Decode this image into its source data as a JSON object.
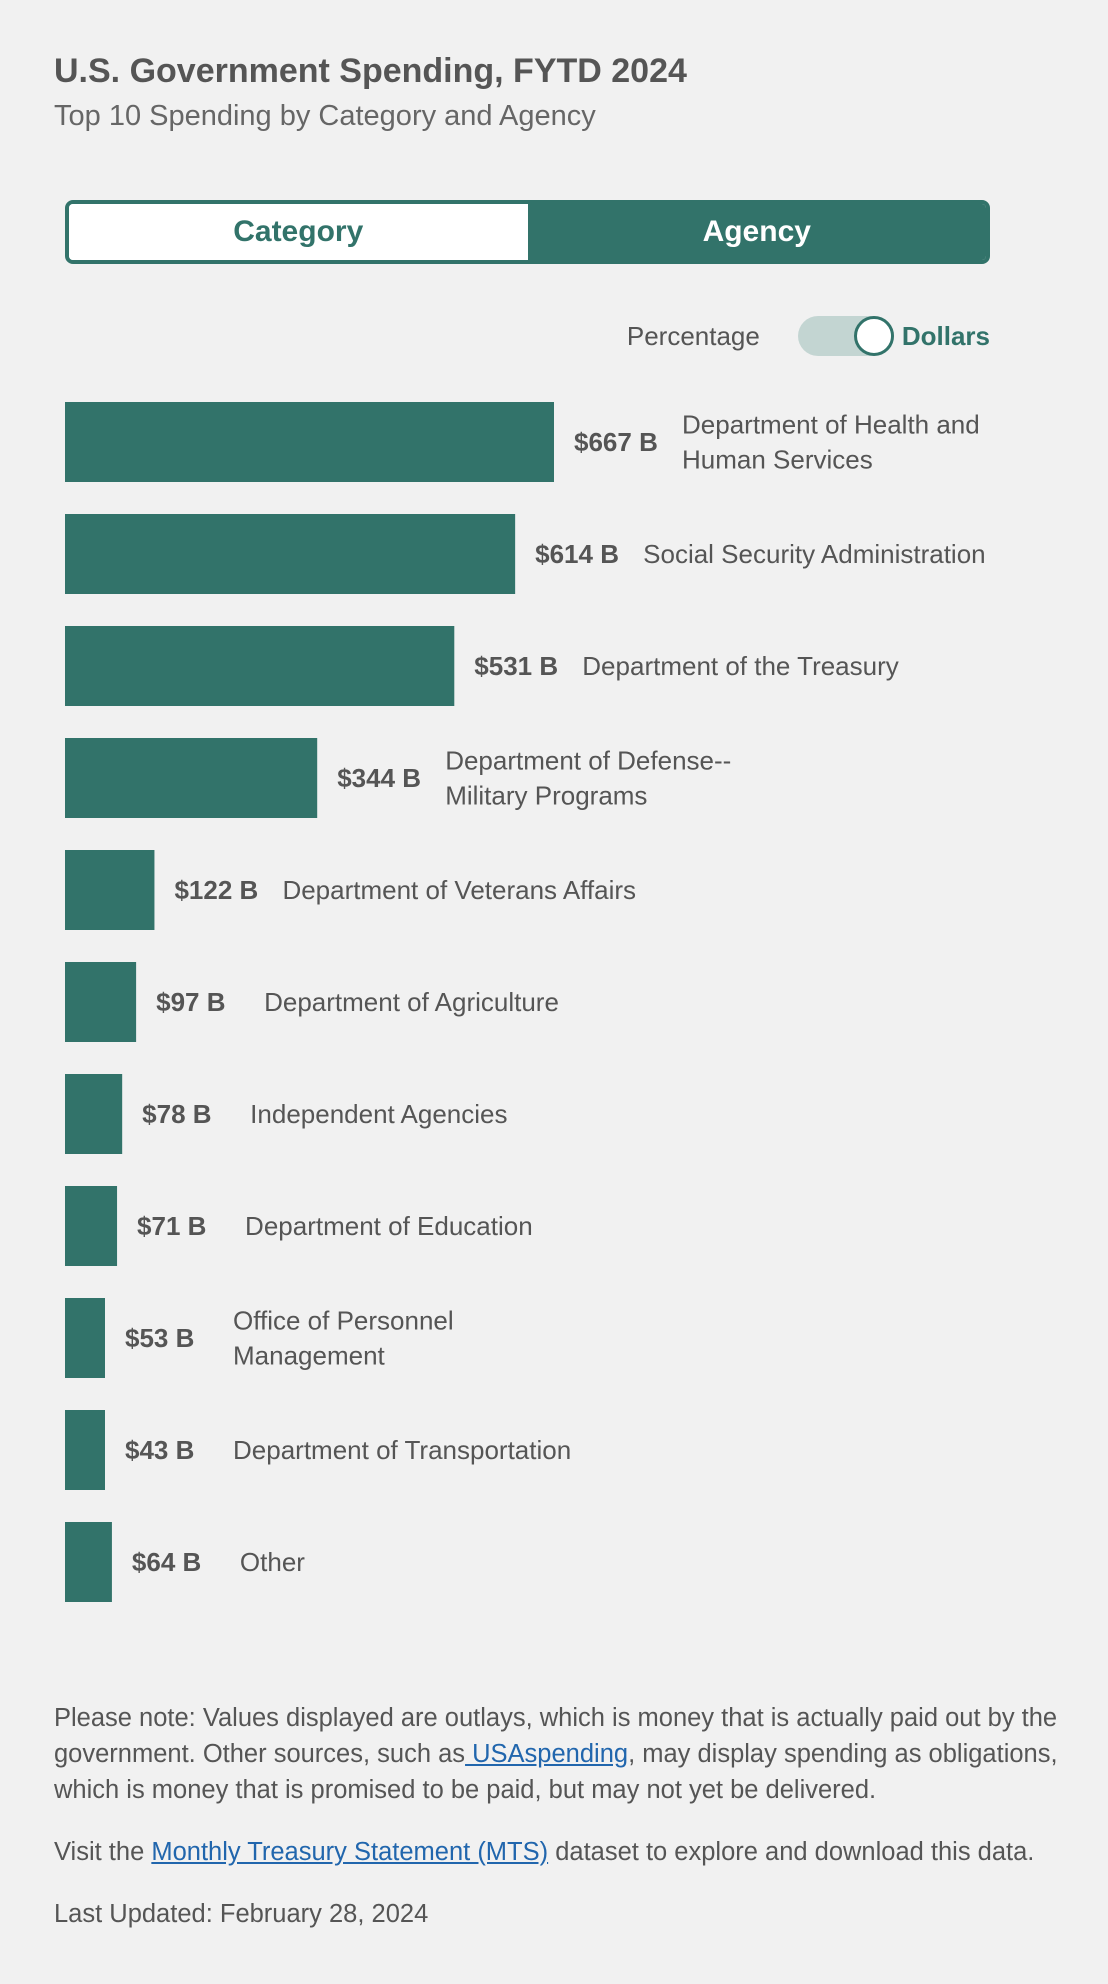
{
  "header": {
    "title": "U.S. Government Spending, FYTD 2024",
    "subtitle": "Top 10 Spending by Category and Agency"
  },
  "tabs": {
    "category_label": "Category",
    "agency_label": "Agency",
    "active": "Agency"
  },
  "toggle": {
    "left_label": "Percentage",
    "right_label": "Dollars",
    "selected": "Dollars"
  },
  "colors": {
    "bar": "#32736a",
    "accent": "#32736a",
    "link": "#2166ad"
  },
  "chart_data": {
    "type": "bar",
    "orientation": "horizontal",
    "unit": "Billions of dollars",
    "categories": [
      "Department of Health and Human Services",
      "Social Security Administration",
      "Department of the Treasury",
      "Department of Defense--Military Programs",
      "Department of Veterans Affairs",
      "Department of Agriculture",
      "Independent Agencies",
      "Department of Education",
      "Office of Personnel Management",
      "Department of Transportation",
      "Other"
    ],
    "category_lines": [
      [
        "Department of Health and",
        "Human Services"
      ],
      [
        "Social Security Administration"
      ],
      [
        "Department of the Treasury"
      ],
      [
        "Department of Defense--",
        "Military Programs"
      ],
      [
        "Department of Veterans Affairs"
      ],
      [
        "Department of Agriculture"
      ],
      [
        "Independent Agencies"
      ],
      [
        "Department of Education"
      ],
      [
        "Office of Personnel",
        "Management"
      ],
      [
        "Department of Transportation"
      ],
      [
        "Other"
      ]
    ],
    "values": [
      667,
      614,
      531,
      344,
      122,
      97,
      78,
      71,
      53,
      43,
      64
    ],
    "value_labels": [
      "$667 B",
      "$614 B",
      "$531 B",
      "$344 B",
      "$122 B",
      "$97 B",
      "$78 B",
      "$71 B",
      "$53 B",
      "$43 B",
      "$64 B"
    ],
    "xlim": [
      0,
      667
    ],
    "grid": false,
    "legend": "none"
  },
  "notes": {
    "note_before_link": "Please note: Values displayed are outlays, which is money that is actually paid out by the government. Other sources, such as",
    "note_link": " USAspending",
    "note_after_link": ", may display spending as obligations, which is money that is promised to be paid, but may not yet be delivered.",
    "visit_before": "Visit the ",
    "visit_link": "Monthly Treasury Statement (MTS)",
    "visit_after": " dataset to explore and download this data.",
    "last_updated": "Last Updated: February 28, 2024"
  }
}
